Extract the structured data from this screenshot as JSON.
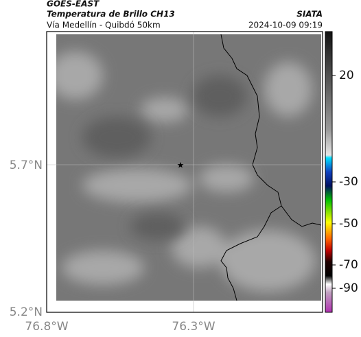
{
  "header": {
    "source": "GOES-EAST",
    "product": "Temperatura de Brillo CH13",
    "region": "Vía Medellín - Quibdó 50km",
    "agency": "SIATA",
    "datetime": "2024-10-09 09:19"
  },
  "map": {
    "lat_labels": [
      "5.7°N",
      "5.2°N"
    ],
    "lon_labels": [
      "76.8°W",
      "76.3°W"
    ]
  },
  "colorbar": {
    "ticks": [
      20,
      -30,
      -50,
      -70,
      -90
    ]
  }
}
